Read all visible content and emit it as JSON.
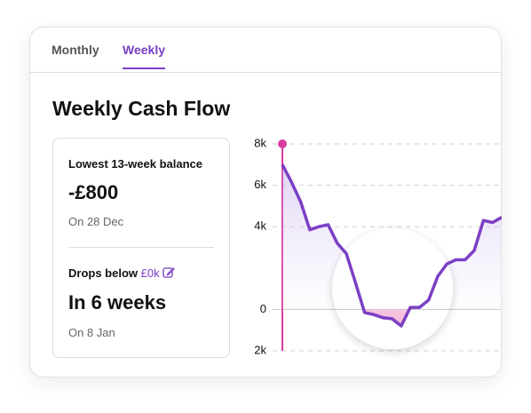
{
  "tabs": [
    {
      "label": "Monthly",
      "active": false
    },
    {
      "label": "Weekly",
      "active": true
    }
  ],
  "title": "Weekly Cash Flow",
  "summary": {
    "lowest_label": "Lowest 13-week balance",
    "lowest_value": "-£800",
    "lowest_date": "On 28 Dec",
    "drops_label": "Drops below",
    "threshold": "£0k",
    "drops_value": "In 6 weeks",
    "drops_date": "On 8 Jan"
  },
  "chart_data": {
    "type": "line",
    "series": [
      {
        "color": "#7b3fc4",
        "values": [
          7000,
          6150,
          5200,
          3850,
          4000,
          4100,
          3200,
          2700,
          1300,
          -150,
          -250,
          -400,
          -450,
          -800,
          100,
          100,
          450,
          1600,
          2200,
          2400,
          2400,
          2850,
          4300,
          4200,
          4450
        ]
      }
    ],
    "ylim": [
      -2000,
      8000
    ],
    "yticks": [
      {
        "value": 8000,
        "label": "8k"
      },
      {
        "value": 6000,
        "label": "6k"
      },
      {
        "value": 4000,
        "label": "4k"
      },
      0,
      {
        "value": -2000,
        "label": "2k"
      }
    ],
    "grid": true
  }
}
